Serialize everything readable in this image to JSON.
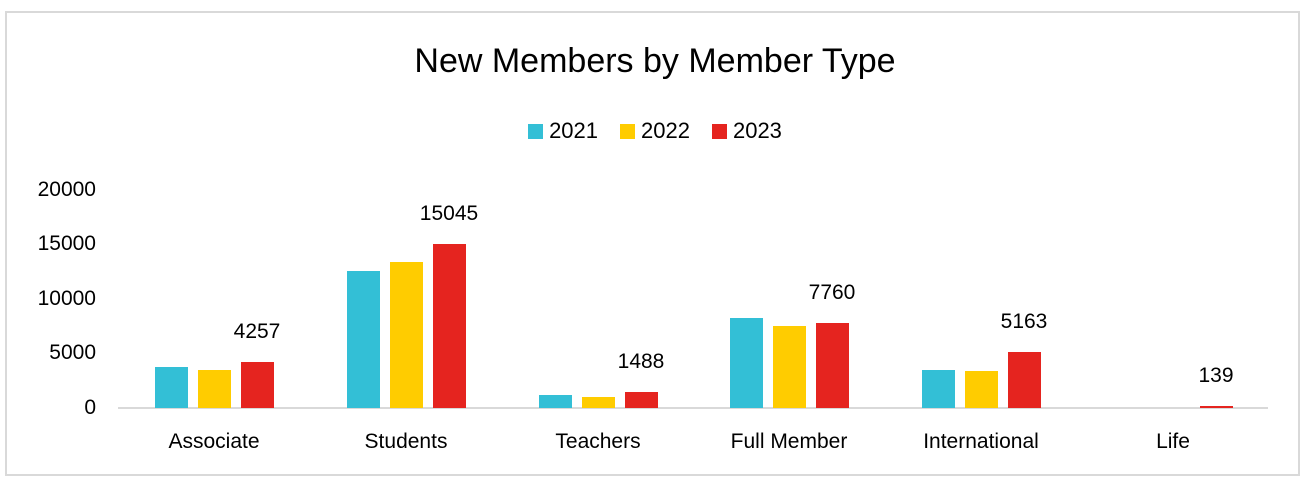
{
  "chart_data": {
    "type": "bar",
    "title": "New Members by Member Type",
    "xlabel": "",
    "ylabel": "",
    "ylim": [
      0,
      20000
    ],
    "yticks": [
      "20000",
      "15000",
      "10000",
      "5000",
      "0"
    ],
    "grid": false,
    "legend_position": "top",
    "categories": [
      "Associate",
      "Students",
      "Teachers",
      "Full Member",
      "International",
      "Life"
    ],
    "series": [
      {
        "name": "2021",
        "color": "#33bfd6",
        "values": [
          3800,
          12600,
          1200,
          8300,
          3500,
          0
        ]
      },
      {
        "name": "2022",
        "color": "#ffcc00",
        "values": [
          3500,
          13400,
          1000,
          7500,
          3400,
          0
        ]
      },
      {
        "name": "2023",
        "color": "#e5241f",
        "values": [
          4257,
          15045,
          1488,
          7760,
          5163,
          139
        ]
      }
    ],
    "data_labels": {
      "series": "2023",
      "values": [
        "4257",
        "15045",
        "1488",
        "7760",
        "5163",
        "139"
      ]
    }
  },
  "legend": [
    {
      "label": "2021",
      "color": "#33bfd6"
    },
    {
      "label": "2022",
      "color": "#ffcc00"
    },
    {
      "label": "2023",
      "color": "#e5241f"
    }
  ]
}
